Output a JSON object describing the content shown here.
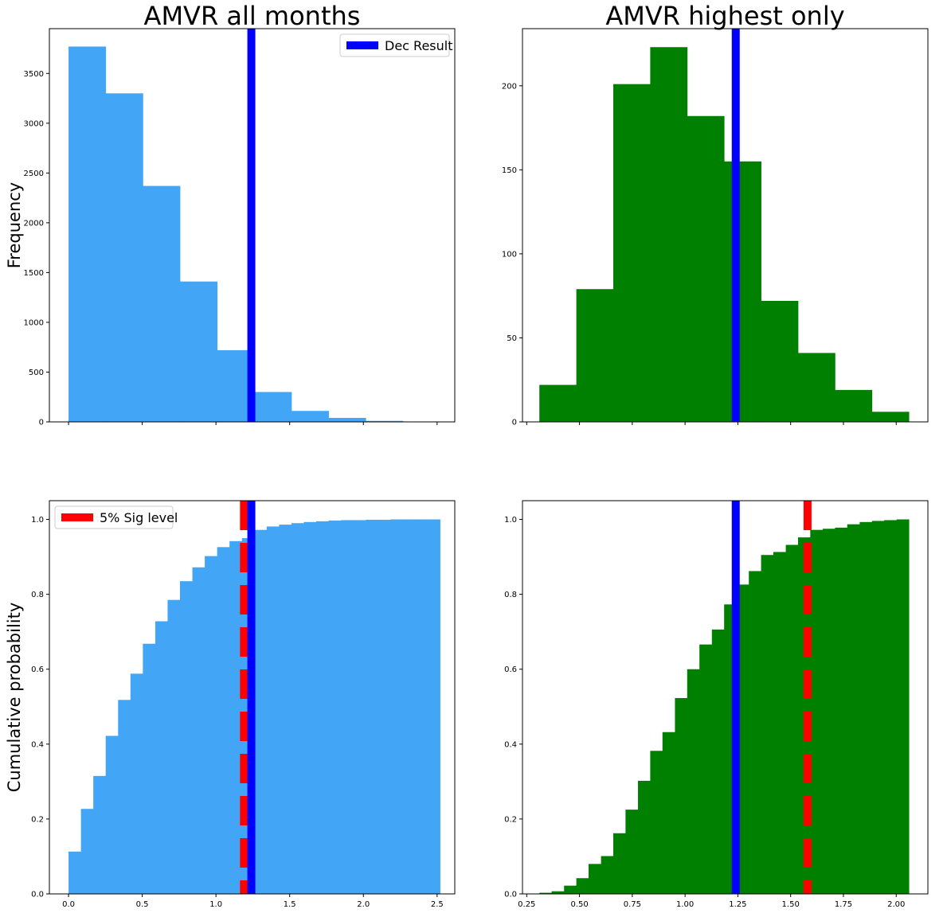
{
  "colors": {
    "all_bars": "#42a5f5",
    "highest_bars": "#008000",
    "dec_line": "#0000ff",
    "sig_line": "#ff0000"
  },
  "chart_data": [
    {
      "id": "hist-all",
      "type": "bar",
      "title": "AMVR all months",
      "ylabel": "Frequency",
      "xlim": [
        -0.13,
        2.62
      ],
      "ylim": [
        0,
        3950
      ],
      "xticks": [
        0,
        0.5,
        1,
        1.5,
        2,
        2.5
      ],
      "xtick_labels": [
        "",
        "",
        "",
        "",
        "",
        ""
      ],
      "yticks": [
        0,
        500,
        1000,
        1500,
        2000,
        2500,
        3000,
        3500
      ],
      "ytick_labels": [
        "0",
        "500",
        "1000",
        "1500",
        "2000",
        "2500",
        "3000",
        "3500"
      ],
      "bin_edges": [
        0.0,
        0.252,
        0.504,
        0.756,
        1.008,
        1.26,
        1.512,
        1.764,
        2.016,
        2.268,
        2.52
      ],
      "values": [
        3770,
        3300,
        2370,
        1410,
        720,
        300,
        110,
        40,
        10,
        2
      ],
      "bar_color_key": "all_bars",
      "vlines": [
        {
          "x": 1.24,
          "color_key": "dec_line",
          "style": "solid",
          "label": "Dec Result"
        }
      ],
      "legend": {
        "placement": "upper-right",
        "entries": [
          "Dec Result"
        ]
      }
    },
    {
      "id": "hist-highest",
      "type": "bar",
      "title": "AMVR highest only",
      "ylabel": "",
      "xlim": [
        0.23,
        2.15
      ],
      "ylim": [
        0,
        234
      ],
      "xticks": [
        0.25,
        0.5,
        0.75,
        1.0,
        1.25,
        1.5,
        1.75,
        2.0
      ],
      "xtick_labels": [
        "",
        "",
        "",
        "",
        "",
        "",
        "",
        ""
      ],
      "yticks": [
        0,
        50,
        100,
        150,
        200
      ],
      "ytick_labels": [
        "0",
        "50",
        "100",
        "150",
        "200"
      ],
      "bin_edges": [
        0.31,
        0.485,
        0.66,
        0.835,
        1.01,
        1.185,
        1.36,
        1.535,
        1.71,
        1.885,
        2.06
      ],
      "values": [
        22,
        79,
        201,
        223,
        182,
        155,
        72,
        41,
        19,
        6
      ],
      "bar_color_key": "highest_bars",
      "vlines": [
        {
          "x": 1.24,
          "color_key": "dec_line",
          "style": "solid"
        }
      ]
    },
    {
      "id": "cdf-all",
      "type": "bar",
      "title": "",
      "ylabel": "Cumulative probability",
      "xlim": [
        -0.13,
        2.62
      ],
      "ylim": [
        0,
        1.05
      ],
      "xticks": [
        0,
        0.5,
        1,
        1.5,
        2,
        2.5
      ],
      "xtick_labels": [
        "0.0",
        "0.5",
        "1.0",
        "1.5",
        "2.0",
        "2.5"
      ],
      "yticks": [
        0,
        0.2,
        0.4,
        0.6,
        0.8,
        1.0
      ],
      "ytick_labels": [
        "0.0",
        "0.2",
        "0.4",
        "0.6",
        "0.8",
        "1.0"
      ],
      "bin_edges": [
        0.0,
        0.084,
        0.168,
        0.252,
        0.336,
        0.42,
        0.504,
        0.588,
        0.672,
        0.756,
        0.84,
        0.924,
        1.008,
        1.092,
        1.176,
        1.26,
        1.344,
        1.428,
        1.512,
        1.596,
        1.68,
        1.764,
        1.848,
        1.932,
        2.016,
        2.1,
        2.184,
        2.268,
        2.352,
        2.436,
        2.52
      ],
      "values": [
        0.113,
        0.227,
        0.315,
        0.422,
        0.518,
        0.588,
        0.668,
        0.728,
        0.785,
        0.835,
        0.872,
        0.902,
        0.926,
        0.942,
        0.95,
        0.972,
        0.981,
        0.986,
        0.99,
        0.993,
        0.995,
        0.997,
        0.998,
        0.998,
        0.999,
        0.999,
        1.0,
        1.0,
        1.0,
        1.0
      ],
      "bar_color_key": "all_bars",
      "vlines": [
        {
          "x": 1.19,
          "color_key": "sig_line",
          "style": "dashed",
          "label": "5% Sig level"
        },
        {
          "x": 1.24,
          "color_key": "dec_line",
          "style": "solid"
        }
      ],
      "legend": {
        "placement": "upper-left",
        "entries": [
          "5% Sig level"
        ]
      }
    },
    {
      "id": "cdf-highest",
      "type": "bar",
      "title": "",
      "ylabel": "",
      "xlim": [
        0.23,
        2.15
      ],
      "ylim": [
        0,
        1.05
      ],
      "xticks": [
        0.25,
        0.5,
        0.75,
        1.0,
        1.25,
        1.5,
        1.75,
        2.0
      ],
      "xtick_labels": [
        "0.25",
        "0.50",
        "0.75",
        "1.00",
        "1.25",
        "1.50",
        "1.75",
        "2.00"
      ],
      "yticks": [
        0,
        0.2,
        0.4,
        0.6,
        0.8,
        1.0
      ],
      "ytick_labels": [
        "0.0",
        "0.2",
        "0.4",
        "0.6",
        "0.8",
        "1.0"
      ],
      "bin_edges": [
        0.31,
        0.368,
        0.427,
        0.485,
        0.543,
        0.602,
        0.66,
        0.718,
        0.777,
        0.835,
        0.893,
        0.952,
        1.01,
        1.068,
        1.127,
        1.185,
        1.243,
        1.302,
        1.36,
        1.418,
        1.477,
        1.535,
        1.593,
        1.652,
        1.71,
        1.768,
        1.827,
        1.885,
        1.943,
        2.002,
        2.06
      ],
      "values": [
        0.003,
        0.007,
        0.022,
        0.042,
        0.08,
        0.101,
        0.162,
        0.225,
        0.302,
        0.382,
        0.432,
        0.523,
        0.6,
        0.666,
        0.706,
        0.773,
        0.826,
        0.862,
        0.905,
        0.913,
        0.932,
        0.952,
        0.972,
        0.975,
        0.978,
        0.987,
        0.993,
        0.996,
        0.998,
        1.0
      ],
      "bar_color_key": "highest_bars",
      "vlines": [
        {
          "x": 1.24,
          "color_key": "dec_line",
          "style": "solid"
        },
        {
          "x": 1.58,
          "color_key": "sig_line",
          "style": "dashed"
        }
      ]
    }
  ]
}
